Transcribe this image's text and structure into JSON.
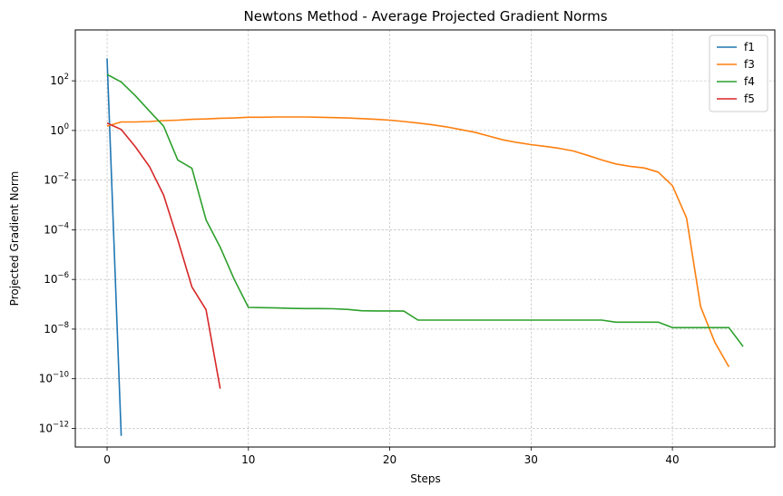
{
  "chart_data": {
    "type": "line",
    "title": "Newtons Method - Average Projected Gradient Norms",
    "xlabel": "Steps",
    "ylabel": "Projected Gradient Norm",
    "yscale": "log",
    "xlim": [
      -2.25,
      47.25
    ],
    "ylim_log10": [
      -12.75,
      4.05
    ],
    "x_ticks": [
      0,
      10,
      20,
      30,
      40
    ],
    "y_ticks": [
      {
        "exp": 2,
        "base": "10",
        "sup": "2"
      },
      {
        "exp": 0,
        "base": "10",
        "sup": "0"
      },
      {
        "exp": -2,
        "base": "10",
        "sup": "−2"
      },
      {
        "exp": -4,
        "base": "10",
        "sup": "−4"
      },
      {
        "exp": -6,
        "base": "10",
        "sup": "−6"
      },
      {
        "exp": -8,
        "base": "10",
        "sup": "−8"
      },
      {
        "exp": -10,
        "base": "10",
        "sup": "−10"
      },
      {
        "exp": -12,
        "base": "10",
        "sup": "−12"
      }
    ],
    "grid": true,
    "legend_position": "top-right",
    "series": [
      {
        "name": "f1",
        "color": "#1f77b4",
        "x": [
          0,
          1
        ],
        "y": [
          800,
          5e-13
        ]
      },
      {
        "name": "f3",
        "color": "#ff7f0e",
        "x": [
          0,
          1,
          2,
          3,
          4,
          5,
          6,
          7,
          8,
          9,
          10,
          11,
          12,
          13,
          14,
          15,
          16,
          17,
          18,
          19,
          20,
          21,
          22,
          23,
          24,
          25,
          26,
          27,
          28,
          29,
          30,
          31,
          32,
          33,
          34,
          35,
          36,
          37,
          38,
          39,
          40,
          41,
          42,
          43,
          44
        ],
        "y": [
          1.5,
          2.2,
          2.2,
          2.3,
          2.5,
          2.6,
          2.8,
          2.9,
          3.1,
          3.2,
          3.4,
          3.4,
          3.5,
          3.5,
          3.5,
          3.4,
          3.3,
          3.2,
          3.0,
          2.8,
          2.6,
          2.3,
          2.0,
          1.7,
          1.4,
          1.1,
          0.85,
          0.6,
          0.42,
          0.33,
          0.27,
          0.23,
          0.19,
          0.15,
          0.1,
          0.065,
          0.045,
          0.036,
          0.031,
          0.021,
          0.006,
          0.0003,
          8e-08,
          3e-09,
          3e-10
        ]
      },
      {
        "name": "f4",
        "color": "#2ca02c",
        "x": [
          0,
          1,
          2,
          3,
          4,
          5,
          6,
          7,
          8,
          9,
          10,
          11,
          12,
          13,
          14,
          15,
          16,
          17,
          18,
          19,
          20,
          21,
          22,
          23,
          24,
          25,
          26,
          27,
          28,
          29,
          30,
          31,
          32,
          33,
          34,
          35,
          36,
          37,
          38,
          39,
          40,
          41,
          42,
          43,
          44,
          45
        ],
        "y": [
          180,
          90,
          25,
          6,
          1.5,
          0.065,
          0.03,
          0.00025,
          2e-05,
          1e-06,
          7.5e-08,
          7.3e-08,
          7.1e-08,
          6.8e-08,
          6.7e-08,
          6.7e-08,
          6.6e-08,
          6.2e-08,
          5.5e-08,
          5.4e-08,
          5.4e-08,
          5.3e-08,
          2.3e-08,
          2.3e-08,
          2.3e-08,
          2.3e-08,
          2.3e-08,
          2.3e-08,
          2.3e-08,
          2.3e-08,
          2.3e-08,
          2.3e-08,
          2.3e-08,
          2.3e-08,
          2.3e-08,
          2.3e-08,
          1.9e-08,
          1.9e-08,
          1.9e-08,
          1.9e-08,
          1.15e-08,
          1.15e-08,
          1.15e-08,
          1.15e-08,
          1.15e-08,
          2e-09
        ]
      },
      {
        "name": "f5",
        "color": "#d62728",
        "x": [
          0,
          1,
          2,
          3,
          4,
          5,
          6,
          7,
          8
        ],
        "y": [
          2.0,
          1.1,
          0.22,
          0.035,
          0.0025,
          4e-05,
          5e-07,
          6e-08,
          4e-11
        ]
      }
    ]
  }
}
